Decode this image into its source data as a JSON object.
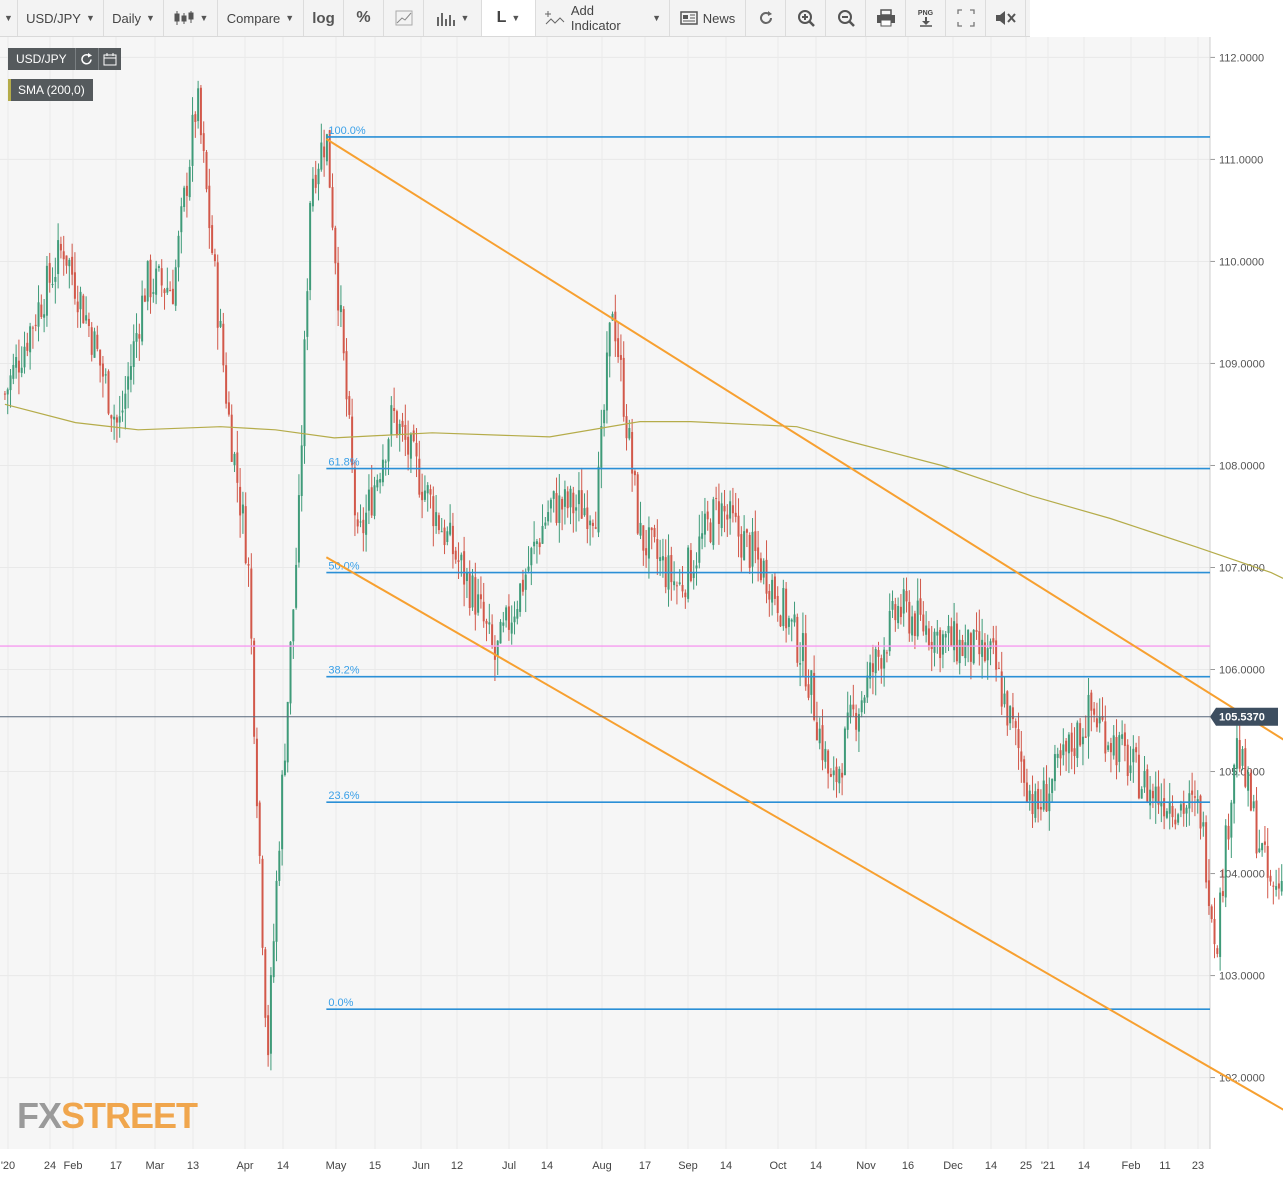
{
  "toolbar": {
    "symbol": "USD/JPY",
    "interval": "Daily",
    "compare": "Compare",
    "log": "log",
    "percent": "%",
    "line_mode": "L",
    "add_indicator": "Add Indicator",
    "news": "News",
    "png": "PNG"
  },
  "legend": {
    "symbol": "USD/JPY",
    "indicator": "SMA (200,0)",
    "indicator_color": "#b5ac4a"
  },
  "watermark": {
    "fx": "FX",
    "street": "STREET"
  },
  "colors": {
    "up_candle": "#3f9b79",
    "down_candle": "#d2584a",
    "fib_line": "#2a8fd6",
    "fib_label": "#3aa0e8",
    "channel": "#f7a030",
    "sma": "#b5ac4a",
    "resistance": "#f59bf0",
    "price_line": "#56677a",
    "grid": "#e9e9e9",
    "plot_bg": "#f6f6f6"
  },
  "chart_data": {
    "type": "candlestick",
    "instrument": "USD/JPY",
    "interval": "Daily",
    "ylim": [
      101.3,
      112.2
    ],
    "yticks": [
      "112.0000",
      "111.0000",
      "110.0000",
      "109.0000",
      "108.0000",
      "107.0000",
      "106.0000",
      "105.0000",
      "104.0000",
      "103.0000",
      "102.0000"
    ],
    "xticks": [
      "'20",
      "24",
      "Feb",
      "17",
      "Mar",
      "13",
      "Apr",
      "14",
      "May",
      "15",
      "Jun",
      "12",
      "Jul",
      "14",
      "Aug",
      "17",
      "Sep",
      "14",
      "Oct",
      "14",
      "Nov",
      "16",
      "Dec",
      "14",
      "25",
      "'21",
      "14",
      "Feb",
      "11",
      "23"
    ],
    "last_price": "105.5370",
    "fibonacci": [
      {
        "label": "100.0%",
        "value": 111.22
      },
      {
        "label": "61.8%",
        "value": 107.97
      },
      {
        "label": "50.0%",
        "value": 106.95
      },
      {
        "label": "38.2%",
        "value": 105.93
      },
      {
        "label": "23.6%",
        "value": 104.7
      },
      {
        "label": "0.0%",
        "value": 102.67
      }
    ],
    "resistance_level": 106.23,
    "channel_lines": [
      {
        "from": [
          "Mar 24 '20",
          111.2
        ],
        "to": [
          "Feb 25 '21",
          103.05
        ]
      },
      {
        "from": [
          "Mar 24 '20",
          107.1
        ],
        "to": [
          "Dec 6 '20",
          101.4
        ]
      }
    ],
    "sma_200": [
      [
        "Jan 2 '20",
        108.6
      ],
      [
        "Jan 20 '20",
        108.42
      ],
      [
        "Feb 5 '20",
        108.35
      ],
      [
        "Feb 26 '20",
        108.38
      ],
      [
        "Mar 11 '20",
        108.35
      ],
      [
        "Mar 26 '20",
        108.27
      ],
      [
        "Apr 20 '20",
        108.32
      ],
      [
        "May 20 '20",
        108.28
      ],
      [
        "Jun 12 '20",
        108.43
      ],
      [
        "Jun 25 '20",
        108.43
      ],
      [
        "Jul 22 '20",
        108.38
      ],
      [
        "Aug 5 '20",
        108.23
      ],
      [
        "Aug 28 '20",
        108.0
      ],
      [
        "Sep 20 '20",
        107.7
      ],
      [
        "Oct 10 '20",
        107.48
      ],
      [
        "Nov 1 '20",
        107.2
      ],
      [
        "Nov 20 '20",
        106.95
      ],
      [
        "Dec 10 '20",
        106.58
      ],
      [
        "Dec 20 '20",
        106.4
      ],
      [
        "Jan 2 '21",
        106.35
      ],
      [
        "Jan 12 '21",
        106.1
      ],
      [
        "Jan 22 '21",
        105.9
      ],
      [
        "Feb 5 '21",
        105.65
      ],
      [
        "Feb 19 '21",
        105.5
      ]
    ],
    "close_path": [
      [
        "Jan 2 '20",
        108.7
      ],
      [
        "Jan 10 '20",
        109.5
      ],
      [
        "Jan 17 '20",
        110.15
      ],
      [
        "Jan 24 '20",
        109.3
      ],
      [
        "Jan 31 '20",
        108.35
      ],
      [
        "Feb 7 '20",
        109.8
      ],
      [
        "Feb 14 '20",
        109.75
      ],
      [
        "Feb 20 '20",
        111.6
      ],
      [
        "Feb 28 '20",
        108.5
      ],
      [
        "Mar 4 '20",
        107.1
      ],
      [
        "Mar 9 '20",
        102.2
      ],
      [
        "Mar 12 '20",
        104.4
      ],
      [
        "Mar 17 '20",
        107.5
      ],
      [
        "Mar 20 '20",
        110.8
      ],
      [
        "Mar 24 '20",
        111.25
      ],
      [
        "Apr 1 '20",
        107.2
      ],
      [
        "Apr 10 '20",
        108.5
      ],
      [
        "Apr 20 '20",
        107.6
      ],
      [
        "May 1 '20",
        106.7
      ],
      [
        "May 6 '20",
        106.1
      ],
      [
        "May 20 '20",
        107.6
      ],
      [
        "Jun 1 '20",
        107.6
      ],
      [
        "Jun 5 '20",
        109.6
      ],
      [
        "Jun 12 '20",
        107.3
      ],
      [
        "Jun 22 '20",
        106.8
      ],
      [
        "Jul 2 '20",
        107.6
      ],
      [
        "Jul 15 '20",
        106.9
      ],
      [
        "Jul 24 '20",
        106.1
      ],
      [
        "Jul 31 '20",
        104.8
      ],
      [
        "Aug 5 '20",
        105.5
      ],
      [
        "Aug 17 '20",
        106.6
      ],
      [
        "Aug 28 '20",
        106.3
      ],
      [
        "Sep 10 '20",
        106.1
      ],
      [
        "Sep 21 '20",
        104.6
      ],
      [
        "Oct 5 '20",
        105.6
      ],
      [
        "Oct 20 '20",
        104.8
      ],
      [
        "Nov 2 '20",
        104.6
      ],
      [
        "Nov 6 '20",
        103.3
      ],
      [
        "Nov 11 '20",
        105.3
      ],
      [
        "Nov 20 '20",
        103.8
      ],
      [
        "Dec 1 '20",
        104.3
      ],
      [
        "Dec 18 '20",
        103.2
      ],
      [
        "Jan 1 '21",
        103.2
      ],
      [
        "Jan 6 '21",
        102.8
      ],
      [
        "Jan 12 '21",
        103.8
      ],
      [
        "Jan 25 '21",
        103.7
      ],
      [
        "Feb 1 '21",
        104.8
      ],
      [
        "Feb 5 '21",
        105.4
      ],
      [
        "Feb 10 '21",
        104.6
      ],
      [
        "Feb 16 '21",
        106.1
      ],
      [
        "Feb 19 '21",
        105.54
      ]
    ]
  }
}
